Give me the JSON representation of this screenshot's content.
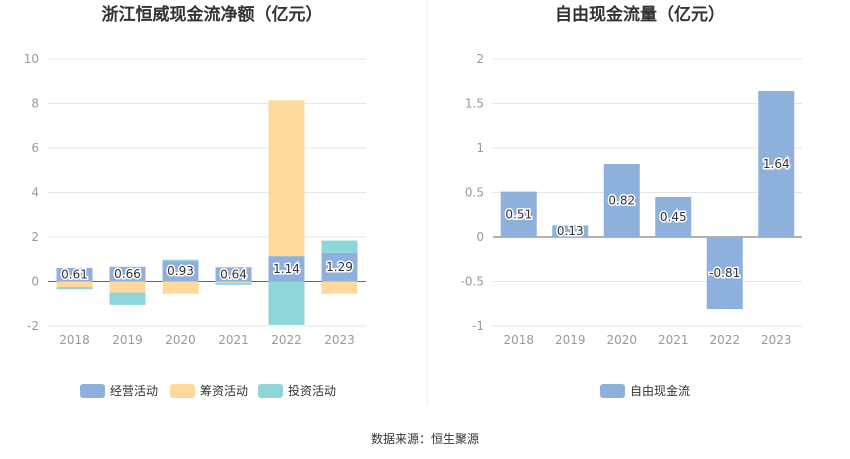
{
  "source_text": "数据来源：恒生聚源",
  "chart_data": [
    {
      "type": "bar",
      "stacked": true,
      "title": "浙江恒威现金流净额（亿元）",
      "categories": [
        "2018",
        "2019",
        "2020",
        "2021",
        "2022",
        "2023"
      ],
      "ylim": [
        -2,
        10
      ],
      "yticks": [
        -2,
        0,
        2,
        4,
        6,
        8,
        10
      ],
      "grid": true,
      "legend_position": "bottom",
      "series": [
        {
          "name": "经营活动",
          "color": "#8eb0dc",
          "values": [
            0.61,
            0.66,
            0.93,
            0.64,
            1.14,
            1.29
          ],
          "labels": [
            "0.61",
            "0.66",
            "0.93",
            "0.64",
            "1.14",
            "1.29"
          ]
        },
        {
          "name": "筹资活动",
          "color": "#ffd89c",
          "values": [
            -0.25,
            -0.5,
            -0.55,
            -0.05,
            7.0,
            -0.55
          ]
        },
        {
          "name": "投资活动",
          "color": "#8ed6d8",
          "values": [
            -0.1,
            -0.55,
            0.05,
            -0.1,
            -1.95,
            0.55
          ]
        }
      ]
    },
    {
      "type": "bar",
      "title": "自由现金流量（亿元）",
      "categories": [
        "2018",
        "2019",
        "2020",
        "2021",
        "2022",
        "2023"
      ],
      "ylim": [
        -1,
        2
      ],
      "yticks": [
        -1,
        -0.5,
        0,
        0.5,
        1,
        1.5,
        2
      ],
      "grid": true,
      "legend_position": "bottom",
      "series": [
        {
          "name": "自由现金流",
          "color": "#8eb0dc",
          "values": [
            0.51,
            0.13,
            0.82,
            0.45,
            -0.81,
            1.64
          ],
          "labels": [
            "0.51",
            "0.13",
            "0.82",
            "0.45",
            "-0.81",
            "1.64"
          ]
        }
      ]
    }
  ]
}
